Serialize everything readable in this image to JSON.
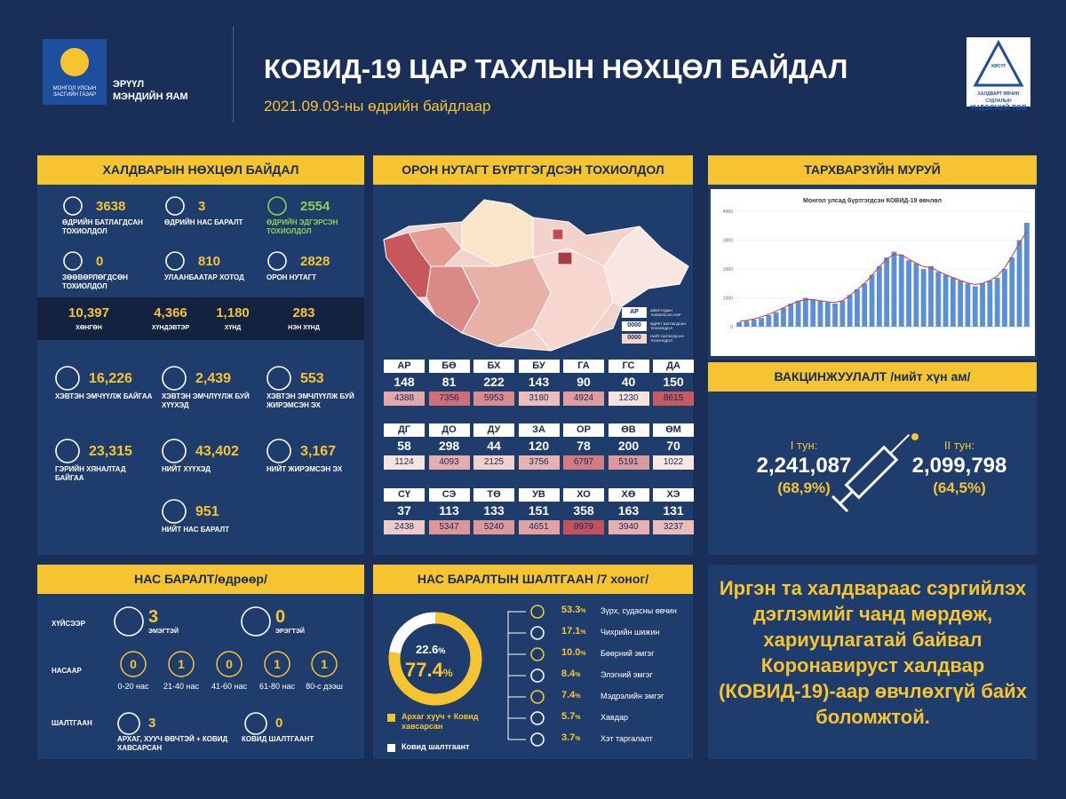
{
  "header": {
    "gov_logo_text": [
      "МОНГОЛ УЛСЫН",
      "ЗАСГИЙН ГАЗАР"
    ],
    "ministry": [
      "ЭРҮҮЛ",
      "МЭНДИЙН ЯАМ"
    ],
    "title": "КОВИД-19 ЦАР ТАХЛЫН НӨХЦӨЛ БАЙДАЛ",
    "subtitle": "2021.09.03-ны өдрийн байдлаар",
    "center_logo_badge": "ХӨСҮТ",
    "center_logo_text": [
      "ХАЛДВАРТ ӨВЧИН СУДЛАЛЫН",
      "ҮНДЭСНИЙ ТӨВ"
    ]
  },
  "infection": {
    "title": "ХАЛДВАРЫН НӨХЦӨЛ БАЙДАЛ",
    "daily": [
      {
        "value": 3638,
        "label": "ӨДРИЙН БАТЛАГДСАН ТОХИОЛДОЛ"
      },
      {
        "value": 3,
        "label": "ӨДРИЙН НАС БАРАЛТ"
      },
      {
        "value": 2554,
        "label": "ӨДРИЙН ЭДГЭРСЭН ТОХИОЛДОЛ"
      },
      {
        "value": 0,
        "label": "ЗӨӨВӨРЛӨГДСӨН ТОХИОЛДОЛ"
      },
      {
        "value": 810,
        "label": "УЛААНБААТАР ХОТОД"
      },
      {
        "value": 2828,
        "label": "ОРОН НУТАГТ"
      }
    ],
    "severity": [
      {
        "value": "10,397",
        "label": "ХӨНГӨН"
      },
      {
        "value": "4,366",
        "label": "ХҮНДЭВТЭР"
      },
      {
        "value": "1,180",
        "label": "ХҮНД"
      },
      {
        "value": 283,
        "label": "НЭН ХҮНД"
      }
    ],
    "care": [
      {
        "value": "16,226",
        "label": "ХЭВТЭН ЭМЧҮҮЛЖ БАЙГАА"
      },
      {
        "value": "2,439",
        "label": "ХЭВТЭН ЭМЧЛҮҮЛЖ БУЙ ХҮҮХЭД"
      },
      {
        "value": 553,
        "label": "ХЭВТЭН ЭМЧЛҮҮЛЖ БУЙ ЖИРЭМСЭН ЭХ"
      },
      {
        "value": "23,315",
        "label": "ГЭРИЙН ХЯНАЛТАД БАЙГАА"
      },
      {
        "value": "43,402",
        "label": "НИЙТ ХҮҮХЭД"
      },
      {
        "value": "3,167",
        "label": "НИЙТ ЖИРЭМСЭН ЭХ"
      },
      {
        "value": 951,
        "label": "НИЙТ НАС БАРАЛТ"
      }
    ]
  },
  "regions": {
    "title": "ОРОН НУТАГТ БҮРТГЭГДСЭН ТОХИОЛДОЛ",
    "legend": {
      "code": "АР",
      "code_label": "АЙМГУУДЫН ТОВЧИЛСОН НЭР",
      "daily": "0000",
      "daily_label": "ӨДРЕТ БАТЛАГДСАН ТОХИОЛДОЛ",
      "total": "0000",
      "total_label": "НИЙТ БАТЛАГДСАН ТОХИОЛДОЛ"
    },
    "provinces": [
      {
        "code": "АР",
        "daily": 148,
        "total": 4388
      },
      {
        "code": "БӨ",
        "daily": 81,
        "total": 7356
      },
      {
        "code": "БХ",
        "daily": 222,
        "total": 5953
      },
      {
        "code": "БУ",
        "daily": 143,
        "total": 3180
      },
      {
        "code": "ГА",
        "daily": 90,
        "total": 4924
      },
      {
        "code": "ГС",
        "daily": 40,
        "total": 1230
      },
      {
        "code": "ДА",
        "daily": 150,
        "total": 8615
      },
      {
        "code": "ДГ",
        "daily": 58,
        "total": 1124
      },
      {
        "code": "ДО",
        "daily": 298,
        "total": 4093
      },
      {
        "code": "ДУ",
        "daily": 44,
        "total": 2125
      },
      {
        "code": "ЗА",
        "daily": 120,
        "total": 3756
      },
      {
        "code": "ОР",
        "daily": 78,
        "total": 6797
      },
      {
        "code": "ӨВ",
        "daily": 200,
        "total": 5191
      },
      {
        "code": "ӨМ",
        "daily": 70,
        "total": 1022
      },
      {
        "code": "СҮ",
        "daily": 37,
        "total": 2438
      },
      {
        "code": "СЭ",
        "daily": 113,
        "total": 5347
      },
      {
        "code": "ТӨ",
        "daily": 133,
        "total": 5240
      },
      {
        "code": "УВ",
        "daily": 151,
        "total": 4651
      },
      {
        "code": "ХО",
        "daily": 358,
        "total": 8979
      },
      {
        "code": "ХӨ",
        "daily": 163,
        "total": 3940
      },
      {
        "code": "ХЭ",
        "daily": 131,
        "total": 3237
      }
    ]
  },
  "epi_curve": {
    "title": "ТАРХВАРЗҮЙН МУРУЙ"
  },
  "chart_data": [
    {
      "type": "bar",
      "title": "Монгол улсад бүртгэгдсэн КОВИД-19 өвчлөл",
      "ylim": [
        0,
        4000
      ],
      "yticks": [
        0,
        1000,
        2000,
        3000,
        4000
      ],
      "grid": true,
      "series": [
        {
          "type": "bar",
          "color": "#5b8fd6",
          "values": [
            150,
            200,
            250,
            300,
            400,
            500,
            650,
            800,
            900,
            1000,
            950,
            900,
            850,
            800,
            900,
            1100,
            1300,
            1500,
            1800,
            2100,
            2400,
            2600,
            2500,
            2300,
            2200,
            2000,
            2100,
            1900,
            1800,
            1700,
            1600,
            1500,
            1400,
            1500,
            1600,
            1700,
            2000,
            2400,
            3000,
            3600
          ]
        },
        {
          "type": "line",
          "color": "#d9342b",
          "values": [
            180,
            220,
            270,
            340,
            430,
            540,
            660,
            780,
            880,
            940,
            940,
            900,
            860,
            840,
            900,
            1080,
            1280,
            1500,
            1780,
            2080,
            2350,
            2500,
            2480,
            2340,
            2200,
            2080,
            2050,
            1920,
            1800,
            1700,
            1600,
            1520,
            1460,
            1500,
            1600,
            1760,
            2040,
            2440,
            2900,
            3300
          ]
        }
      ]
    },
    {
      "type": "pie",
      "categories": [
        "Архаг хууч + Ковид хавсарсан",
        "Ковид шалтгаант"
      ],
      "values": [
        77.4,
        22.6
      ],
      "colors": [
        "#f6c431",
        "#ffffff"
      ],
      "unit": "%"
    }
  ],
  "vaccination": {
    "title": "ВАКЦИНЖУУЛАЛТ /нийт хүн ам/",
    "doses": [
      {
        "label": "I тун:",
        "value": "2,241,087",
        "percent": "(68,9%)"
      },
      {
        "label": "II тун:",
        "value": "2,099,798",
        "percent": "(64,5%)"
      }
    ]
  },
  "deaths": {
    "title": "НАС БАРАЛТ/өдрөөр/",
    "by_sex": {
      "label": "ХҮЙСЭЭР",
      "items": [
        {
          "value": 3,
          "label": "ЭМЭГТЭЙ"
        },
        {
          "value": 0,
          "label": "ЭРЭГТЭЙ"
        }
      ]
    },
    "by_age": {
      "label": "НАСААР",
      "items": [
        {
          "value": 0,
          "label": "0-20 нас"
        },
        {
          "value": 1,
          "label": "21-40 нас"
        },
        {
          "value": 0,
          "label": "41-60 нас"
        },
        {
          "value": 1,
          "label": "61-80 нас"
        },
        {
          "value": 1,
          "label": "80-с дээш"
        }
      ]
    },
    "by_cause": {
      "label": "ШАЛТГААН",
      "items": [
        {
          "value": 3,
          "label": "АРХАГ, ХУУЧ ӨВЧТЭЙ + КОВИД ХАВСАРСАН"
        },
        {
          "value": 0,
          "label": "КОВИД ШАЛТГААНТ"
        }
      ]
    }
  },
  "causes": {
    "title": "НАС БАРАЛТЫН ШАЛТГААН /7 хоног/",
    "items": [
      {
        "value": "53.3",
        "label": "Зүрх, судасны өвчин"
      },
      {
        "value": "17.1",
        "label": "Чихрийн шижин"
      },
      {
        "value": "10.0",
        "label": "Бөөрний эмгэг"
      },
      {
        "value": "8.4",
        "label": "Элэгний эмгэг"
      },
      {
        "value": "7.4",
        "label": "Мэдрэлийн эмгэг"
      },
      {
        "value": "5.7",
        "label": "Хавдар"
      },
      {
        "value": "3.7",
        "label": "Хэт таргалалт"
      }
    ]
  },
  "message": {
    "text": "Иргэн та халдвараас сэргийлэх дэглэмийг чанд мөрдөж, хариуцлагатай байвал Коронавируст халдвар (КОВИД-19)-аар өвчлөхгүй байх боломжтой."
  }
}
